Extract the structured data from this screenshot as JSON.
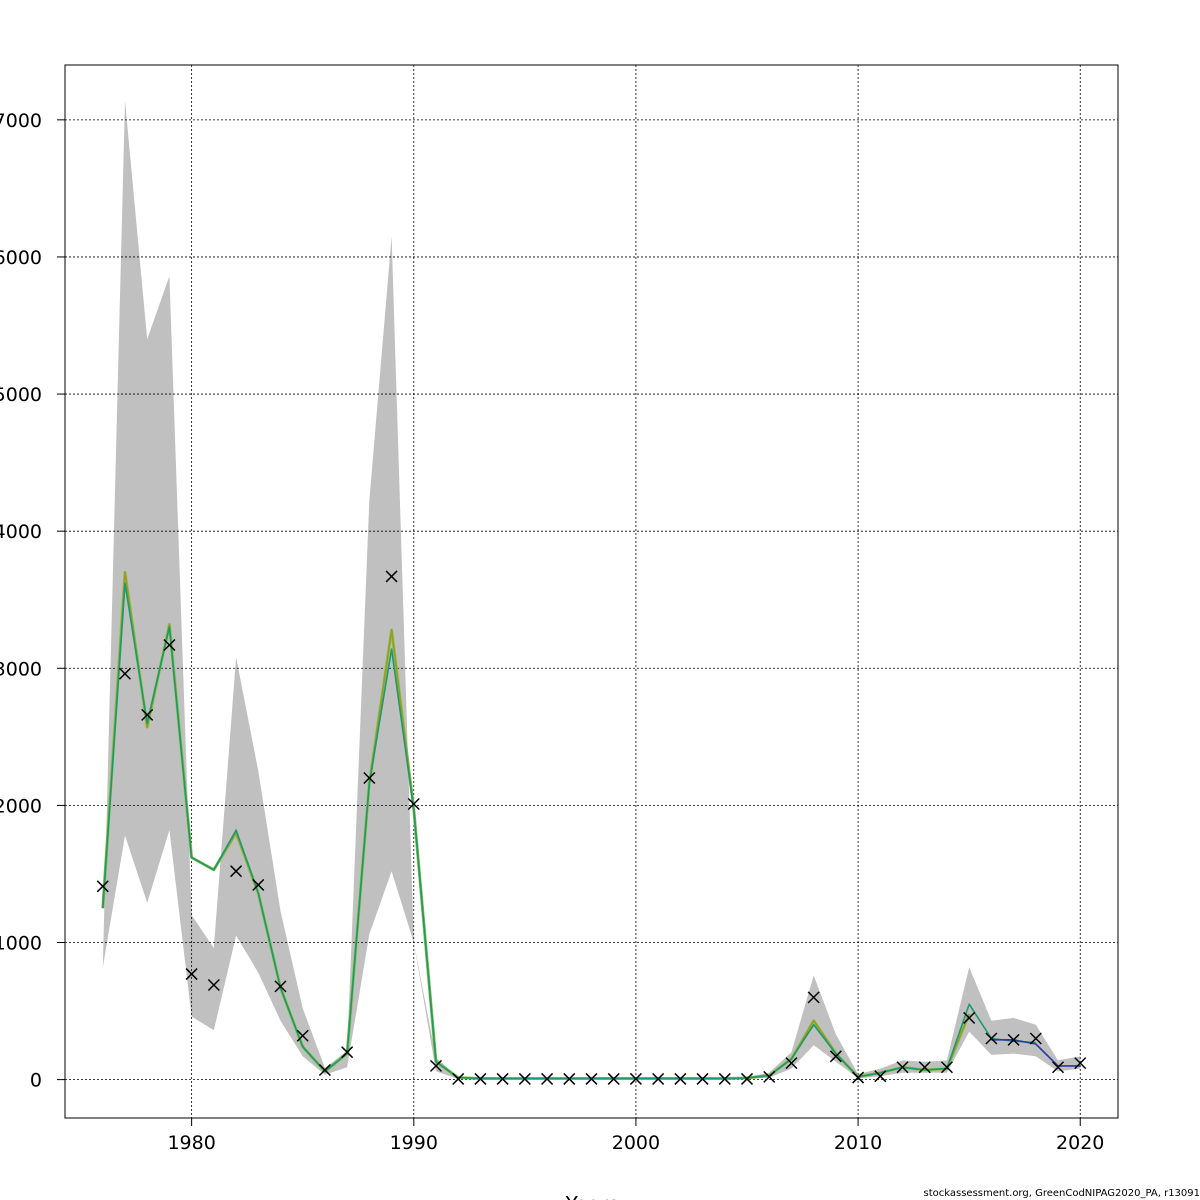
{
  "chart_data": {
    "type": "line",
    "xlabel": "Years",
    "ylabel": "",
    "xlim": [
      1974.3,
      2021.7
    ],
    "ylim": [
      -280,
      7400
    ],
    "grid": true,
    "x_ticks": [
      1980,
      1990,
      2000,
      2010,
      2020
    ],
    "y_ticks": [
      0,
      1000,
      2000,
      3000,
      4000,
      5000,
      6000,
      7000
    ],
    "y_tick_labels": [
      "0",
      "1000",
      "2000",
      "3000",
      "4000",
      "5000",
      "6000",
      "7000"
    ],
    "years": [
      1976,
      1977,
      1978,
      1979,
      1980,
      1981,
      1982,
      1983,
      1984,
      1985,
      1986,
      1987,
      1988,
      1989,
      1990,
      1991,
      1992,
      1993,
      1994,
      1995,
      1996,
      1997,
      1998,
      1999,
      2000,
      2001,
      2002,
      2003,
      2004,
      2005,
      2006,
      2007,
      2008,
      2009,
      2010,
      2011,
      2012,
      2013,
      2014,
      2015,
      2016,
      2017,
      2018,
      2019,
      2020
    ],
    "band": {
      "color": "#c0c0c0",
      "upper": [
        820,
        7140,
        5400,
        5860,
        1200,
        960,
        3080,
        2250,
        1230,
        520,
        85,
        210,
        4220,
        6150,
        1000,
        160,
        20,
        15,
        15,
        15,
        15,
        15,
        15,
        15,
        15,
        15,
        15,
        15,
        15,
        20,
        50,
        200,
        760,
        330,
        40,
        80,
        140,
        130,
        140,
        820,
        430,
        450,
        400,
        140,
        170
      ],
      "lower": [
        820,
        1780,
        1290,
        1820,
        460,
        360,
        1050,
        780,
        430,
        170,
        35,
        90,
        1060,
        1520,
        1000,
        60,
        5,
        3,
        3,
        3,
        3,
        3,
        3,
        3,
        3,
        3,
        3,
        3,
        3,
        5,
        15,
        80,
        250,
        130,
        10,
        25,
        50,
        50,
        50,
        350,
        180,
        190,
        170,
        60,
        80
      ]
    },
    "series": [
      {
        "color": "#8bc34a",
        "values": [
          1250,
          3700,
          2570,
          3320,
          1620,
          1530,
          1800,
          1360,
          670,
          240,
          60,
          190,
          2160,
          3280,
          1970,
          130,
          15,
          8,
          8,
          8,
          8,
          8,
          8,
          8,
          8,
          8,
          8,
          8,
          8,
          12,
          30,
          150,
          430,
          190,
          20,
          50,
          90,
          70,
          80,
          480,
          0,
          0,
          0,
          0,
          0
        ]
      },
      {
        "color": "#9a9a2a",
        "values": [
          1250,
          3700,
          2570,
          3320,
          1620,
          1530,
          1800,
          1360,
          670,
          240,
          60,
          190,
          2160,
          3280,
          1970,
          130,
          15,
          8,
          8,
          8,
          8,
          8,
          8,
          8,
          8,
          8,
          8,
          8,
          8,
          12,
          30,
          150,
          430,
          190,
          20,
          50,
          90,
          70,
          80,
          480,
          0,
          0,
          0,
          0,
          0
        ]
      },
      {
        "color": "#1a9a70",
        "values": [
          1250,
          3620,
          2600,
          3300,
          1620,
          1530,
          1820,
          1360,
          670,
          240,
          60,
          190,
          2160,
          3140,
          1970,
          130,
          15,
          8,
          8,
          8,
          8,
          8,
          8,
          8,
          8,
          8,
          8,
          8,
          8,
          12,
          30,
          150,
          400,
          190,
          20,
          50,
          90,
          70,
          80,
          550,
          300,
          280,
          270,
          0,
          0
        ]
      },
      {
        "color": "#2a3aa0",
        "values": [
          0,
          0,
          0,
          0,
          0,
          0,
          0,
          0,
          0,
          0,
          0,
          0,
          0,
          0,
          0,
          0,
          0,
          0,
          0,
          0,
          0,
          0,
          0,
          0,
          0,
          0,
          0,
          0,
          0,
          0,
          0,
          0,
          0,
          0,
          0,
          0,
          0,
          0,
          0,
          0,
          290,
          290,
          260,
          100,
          100
        ]
      }
    ],
    "observations": [
      1410,
      2960,
      2660,
      3170,
      770,
      690,
      1520,
      1420,
      680,
      320,
      70,
      200,
      2200,
      3670,
      2010,
      100,
      5,
      5,
      5,
      5,
      5,
      5,
      5,
      5,
      5,
      5,
      5,
      5,
      5,
      5,
      20,
      120,
      600,
      170,
      15,
      25,
      90,
      90,
      90,
      450,
      300,
      290,
      300,
      90,
      120
    ],
    "credit": "stockassessment.org, GreenCodNIPAG2020_PA, r13091"
  }
}
